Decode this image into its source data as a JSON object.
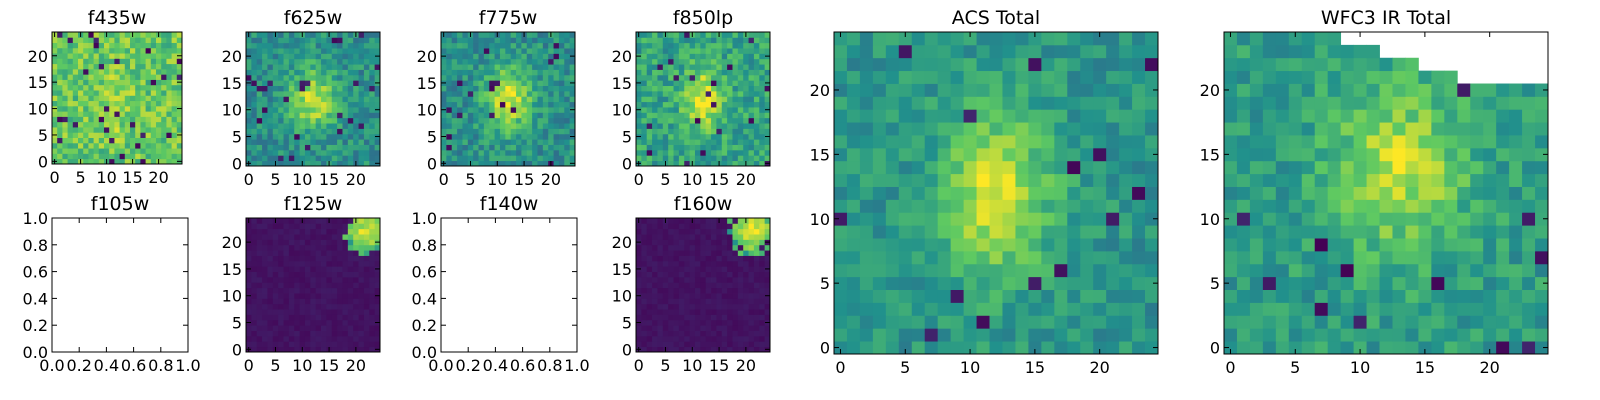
{
  "figure": {
    "background": "#ffffff",
    "colormap": [
      "#440154",
      "#3b528b",
      "#21918c",
      "#5ec962",
      "#fde725"
    ]
  },
  "chart_data": [
    {
      "id": "f435w",
      "type": "heatmap",
      "title": "f435w",
      "empty": false,
      "size": 25,
      "xlim": [
        -0.5,
        24.5
      ],
      "ylim": [
        -0.5,
        24.5
      ],
      "xticks": [
        0,
        5,
        10,
        15,
        20
      ],
      "yticks": [
        0,
        5,
        10,
        15,
        20
      ],
      "blob": {
        "cx": 12,
        "cy": 11,
        "sx": 2.0,
        "sy": 4.0,
        "amp": 0.12
      },
      "base": 0.74,
      "noise": 0.16,
      "seed": 11,
      "hot_pixels": 0.04
    },
    {
      "id": "f625w",
      "type": "heatmap",
      "title": "f625w",
      "empty": false,
      "size": 25,
      "xlim": [
        -0.5,
        24.5
      ],
      "ylim": [
        -0.5,
        24.5
      ],
      "xticks": [
        0,
        5,
        10,
        15,
        20
      ],
      "yticks": [
        0,
        5,
        10,
        15,
        20
      ],
      "blob": {
        "cx": 12,
        "cy": 12,
        "sx": 3.0,
        "sy": 4.0,
        "amp": 0.42
      },
      "base": 0.5,
      "noise": 0.14,
      "seed": 23,
      "hot_pixels": 0.03
    },
    {
      "id": "f775w",
      "type": "heatmap",
      "title": "f775w",
      "empty": false,
      "size": 25,
      "xlim": [
        -0.5,
        24.5
      ],
      "ylim": [
        -0.5,
        24.5
      ],
      "xticks": [
        0,
        5,
        10,
        15,
        20
      ],
      "yticks": [
        0,
        5,
        10,
        15,
        20
      ],
      "blob": {
        "cx": 12,
        "cy": 12,
        "sx": 3.0,
        "sy": 4.0,
        "amp": 0.45
      },
      "base": 0.5,
      "noise": 0.14,
      "seed": 37,
      "hot_pixels": 0.03
    },
    {
      "id": "f850lp",
      "type": "heatmap",
      "title": "f850lp",
      "empty": false,
      "size": 25,
      "xlim": [
        -0.5,
        24.5
      ],
      "ylim": [
        -0.5,
        24.5
      ],
      "xticks": [
        0,
        5,
        10,
        15,
        20
      ],
      "yticks": [
        0,
        5,
        10,
        15,
        20
      ],
      "blob": {
        "cx": 12,
        "cy": 12,
        "sx": 2.5,
        "sy": 4.0,
        "amp": 0.38
      },
      "base": 0.58,
      "noise": 0.15,
      "seed": 41,
      "hot_pixels": 0.03
    },
    {
      "id": "f105w",
      "type": "heatmap",
      "title": "f105w",
      "empty": true,
      "xlim": [
        0,
        1
      ],
      "ylim": [
        0,
        1
      ],
      "xticks": [
        "0.0",
        "0.2",
        "0.4",
        "0.6",
        "0.8",
        "1.0"
      ],
      "yticks": [
        "0.0",
        "0.2",
        "0.4",
        "0.6",
        "0.8",
        "1.0"
      ]
    },
    {
      "id": "f125w",
      "type": "heatmap",
      "title": "f125w",
      "empty": false,
      "size": 25,
      "xlim": [
        -0.5,
        24.5
      ],
      "ylim": [
        -0.5,
        24.5
      ],
      "xticks": [
        0,
        5,
        10,
        15,
        20
      ],
      "yticks": [
        0,
        5,
        10,
        15,
        20
      ],
      "base": 0.0,
      "noise": 0.03,
      "seed": 53,
      "hot_pixels": 0,
      "corner": {
        "cx": 22,
        "cy": 22,
        "r": 3.2
      }
    },
    {
      "id": "f140w",
      "type": "heatmap",
      "title": "f140w",
      "empty": true,
      "xlim": [
        0,
        1
      ],
      "ylim": [
        0,
        1
      ],
      "xticks": [
        "0.0",
        "0.2",
        "0.4",
        "0.6",
        "0.8",
        "1.0"
      ],
      "yticks": [
        "0.0",
        "0.2",
        "0.4",
        "0.6",
        "0.8",
        "1.0"
      ]
    },
    {
      "id": "f160w",
      "type": "heatmap",
      "title": "f160w",
      "empty": false,
      "size": 25,
      "xlim": [
        -0.5,
        24.5
      ],
      "ylim": [
        -0.5,
        24.5
      ],
      "xticks": [
        0,
        5,
        10,
        15,
        20
      ],
      "yticks": [
        0,
        5,
        10,
        15,
        20
      ],
      "base": 0.0,
      "noise": 0.03,
      "seed": 61,
      "hot_pixels": 0,
      "corner": {
        "cx": 21,
        "cy": 22,
        "r": 3.6
      }
    },
    {
      "id": "acs_total",
      "type": "heatmap",
      "title": "ACS Total",
      "empty": false,
      "size": 25,
      "xlim": [
        -0.5,
        24.5
      ],
      "ylim": [
        -0.5,
        24.5
      ],
      "xticks": [
        0,
        5,
        10,
        15,
        20
      ],
      "yticks": [
        0,
        5,
        10,
        15,
        20
      ],
      "blob": {
        "cx": 12,
        "cy": 12,
        "sx": 3.0,
        "sy": 4.5,
        "amp": 0.42
      },
      "base": 0.52,
      "noise": 0.11,
      "seed": 71,
      "hot_pixels": 0.02
    },
    {
      "id": "wfc3_ir_total",
      "type": "heatmap",
      "title": "WFC3 IR Total",
      "empty": false,
      "size": 25,
      "xlim": [
        -0.5,
        24.5
      ],
      "ylim": [
        -0.5,
        24.5
      ],
      "xticks": [
        0,
        5,
        10,
        15,
        20
      ],
      "yticks": [
        0,
        5,
        10,
        15,
        20
      ],
      "blob": {
        "cx": 13,
        "cy": 14,
        "sx": 3.5,
        "sy": 4.5,
        "amp": 0.35
      },
      "base": 0.55,
      "noise": 0.12,
      "seed": 83,
      "hot_pixels": 0.02,
      "mask_top_right": true
    }
  ]
}
